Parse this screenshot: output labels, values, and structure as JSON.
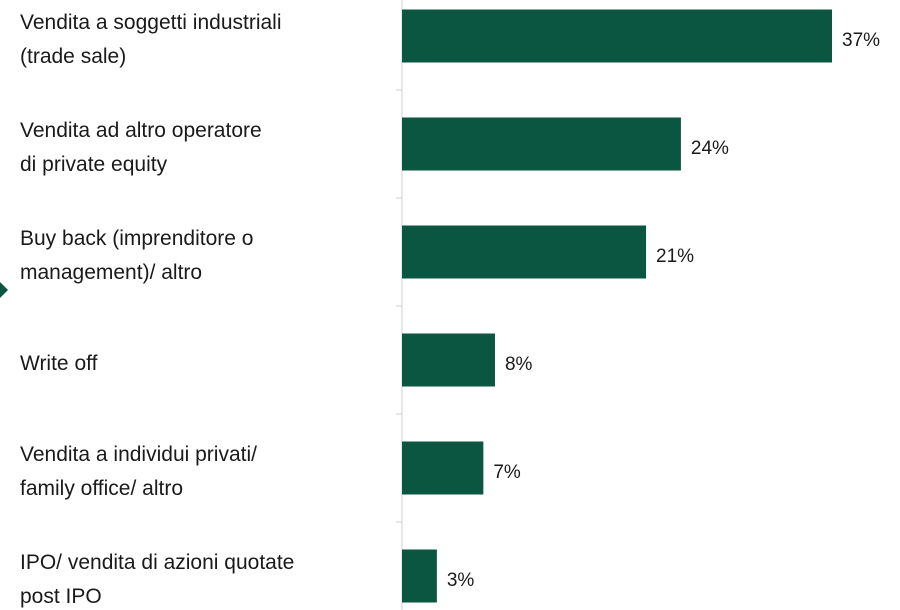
{
  "chart_data": {
    "type": "bar",
    "orientation": "horizontal",
    "categories": [
      "Vendita a soggetti industriali\n(trade sale)",
      "Vendita ad altro operatore\ndi private equity",
      "Buy back (imprenditore o\nmanagement)/ altro",
      "Write off",
      "Vendita a individui privati/\nfamily office/ altro",
      "IPO/ vendita di azioni quotate\npost IPO"
    ],
    "values": [
      37,
      24,
      21,
      8,
      7,
      3
    ],
    "value_labels": [
      "37%",
      "24%",
      "21%",
      "8%",
      "7%",
      "3%"
    ],
    "color": "#0b5640"
  }
}
